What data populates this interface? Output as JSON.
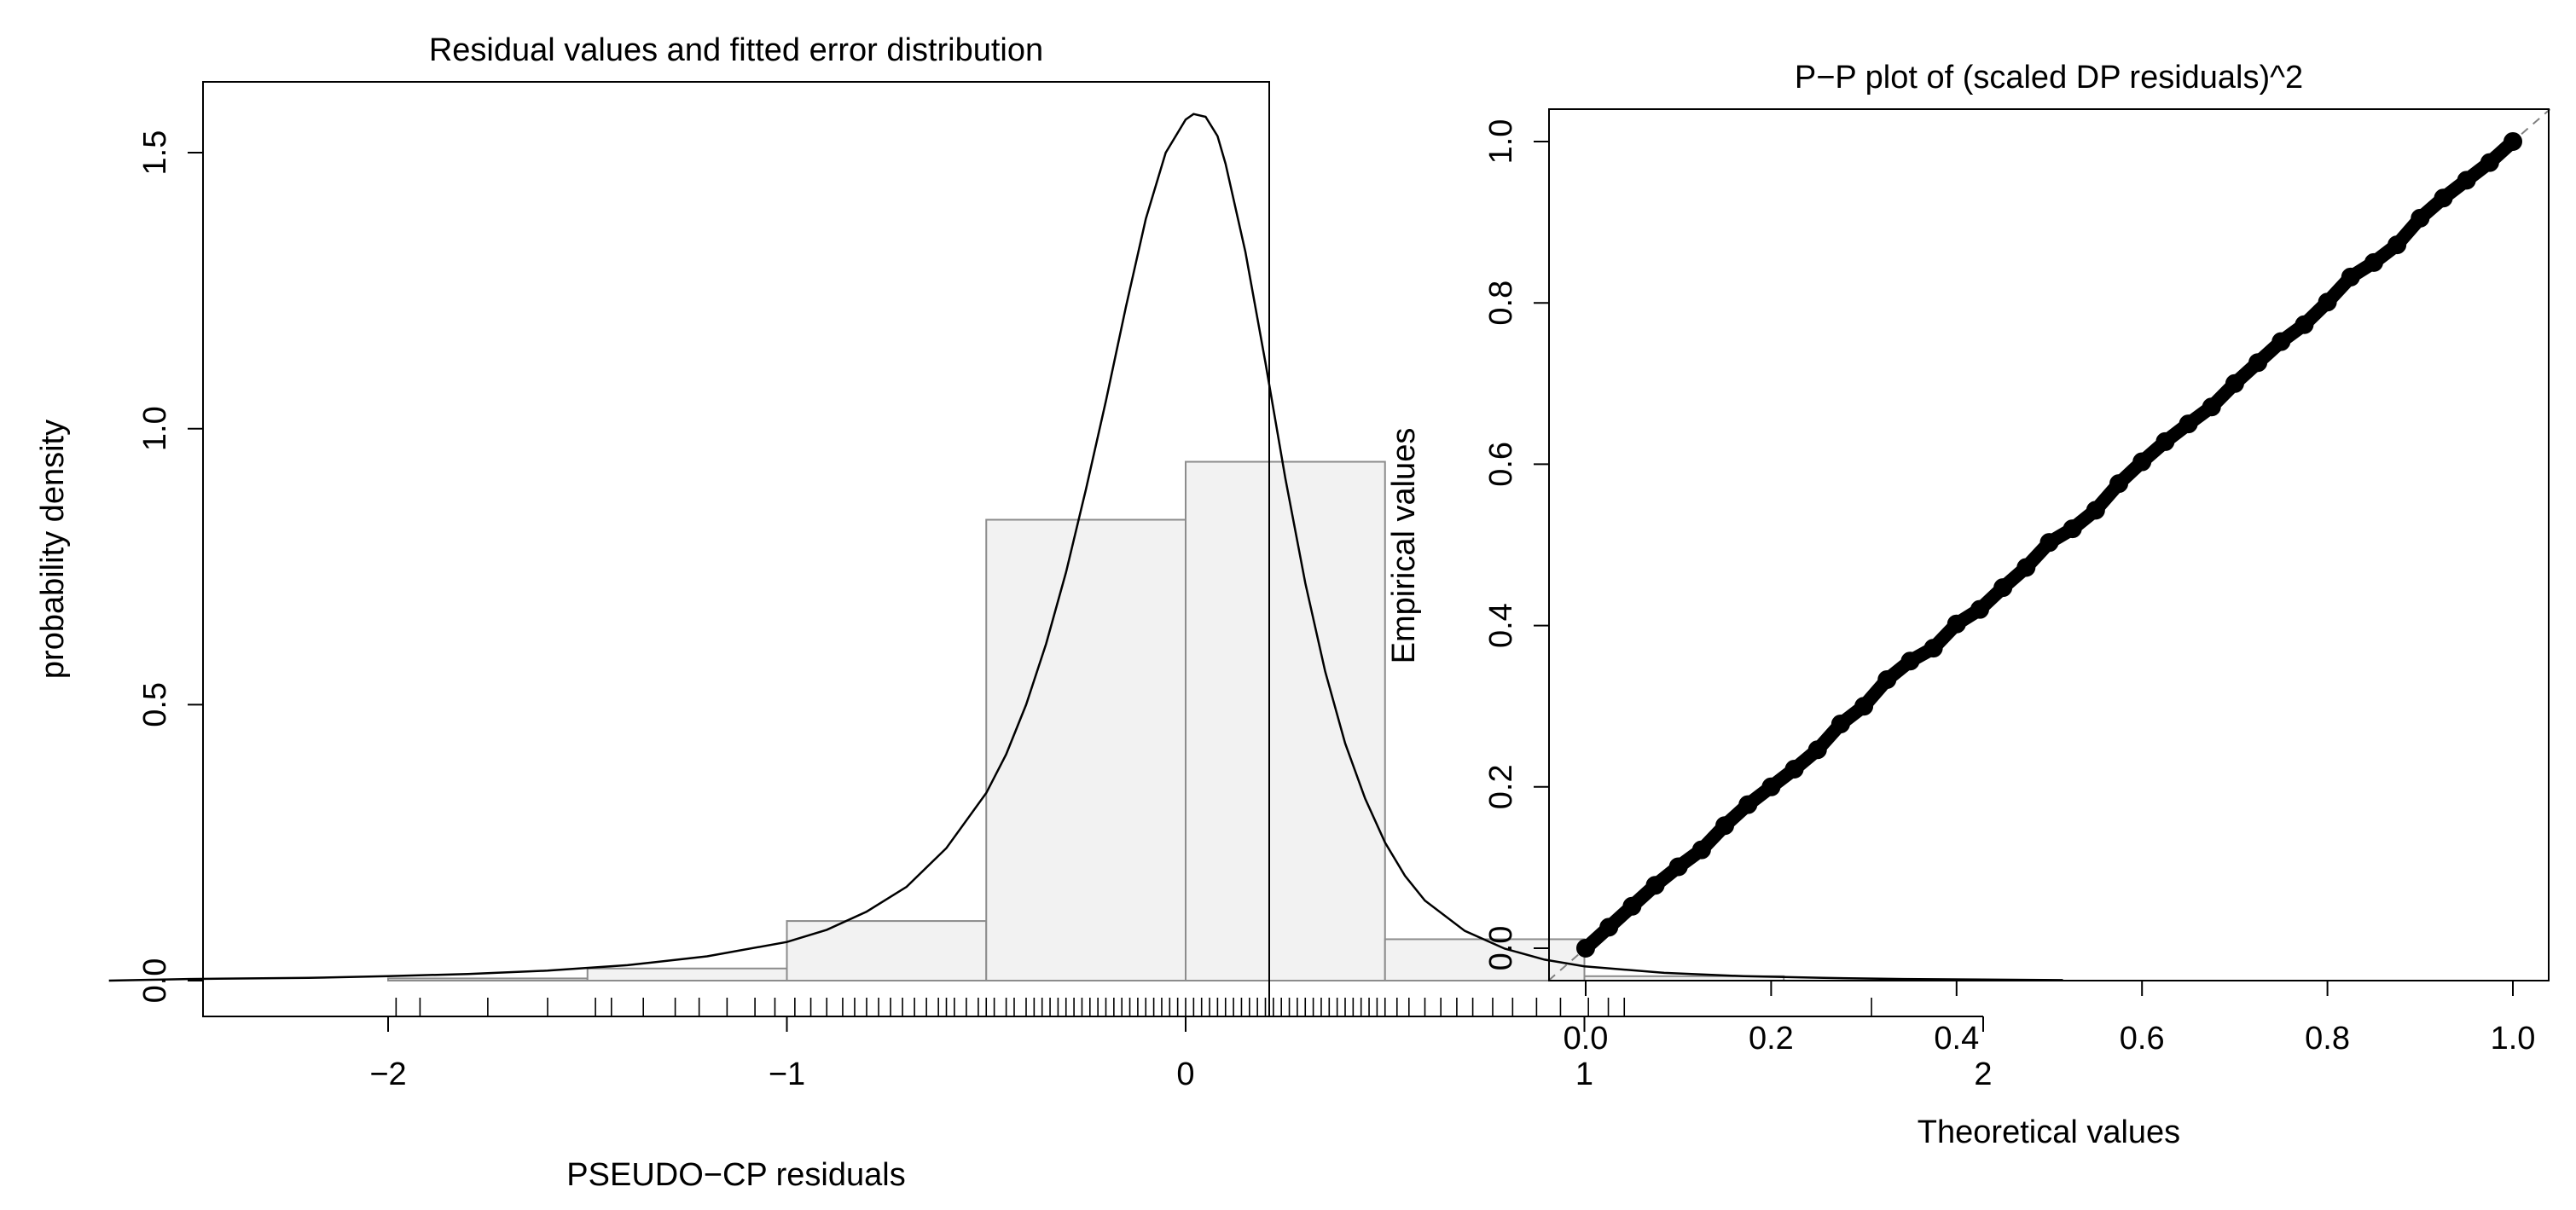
{
  "chart_data": [
    {
      "type": "bar",
      "title": "Residual values and fitted error distribution",
      "xlabel": "PSEUDO−CP residuals",
      "ylabel": "probability density",
      "xlim": [
        -2.7,
        2.2
      ],
      "ylim": [
        0,
        1.65
      ],
      "x_ticks": [
        -2,
        -1,
        0,
        1,
        2
      ],
      "x_tick_labels": [
        "−2",
        "−1",
        "0",
        "1",
        "2"
      ],
      "y_ticks": [
        0,
        0.5,
        1,
        1.5
      ],
      "y_tick_labels": [
        "0.0",
        "0.5",
        "1.0",
        "1.5"
      ],
      "grid": false,
      "histogram": {
        "bin_edges": [
          -2,
          -1.5,
          -1,
          -0.5,
          0,
          0.5,
          1,
          1.5
        ],
        "values": [
          0.004,
          0.022,
          0.108,
          0.835,
          0.94,
          0.075,
          0.008
        ],
        "fill": "#f2f2f2",
        "stroke": "#8c8c8c"
      },
      "density_curve": {
        "color": "#000000",
        "x": [
          -2.7,
          -2.5,
          -2.2,
          -2.0,
          -1.8,
          -1.6,
          -1.4,
          -1.2,
          -1.0,
          -0.9,
          -0.8,
          -0.7,
          -0.6,
          -0.5,
          -0.45,
          -0.4,
          -0.35,
          -0.3,
          -0.25,
          -0.2,
          -0.15,
          -0.1,
          -0.05,
          0.0,
          0.02,
          0.05,
          0.08,
          0.1,
          0.15,
          0.2,
          0.25,
          0.3,
          0.35,
          0.4,
          0.45,
          0.5,
          0.55,
          0.6,
          0.7,
          0.8,
          0.9,
          1.0,
          1.2,
          1.4,
          1.6,
          1.8,
          2.0,
          2.2
        ],
        "y": [
          0.0,
          0.003,
          0.005,
          0.008,
          0.012,
          0.018,
          0.028,
          0.044,
          0.07,
          0.092,
          0.125,
          0.17,
          0.24,
          0.34,
          0.41,
          0.5,
          0.61,
          0.74,
          0.89,
          1.05,
          1.22,
          1.38,
          1.5,
          1.56,
          1.57,
          1.565,
          1.53,
          1.48,
          1.32,
          1.12,
          0.91,
          0.72,
          0.56,
          0.43,
          0.33,
          0.25,
          0.19,
          0.145,
          0.09,
          0.058,
          0.038,
          0.026,
          0.014,
          0.008,
          0.005,
          0.003,
          0.002,
          0.001
        ]
      },
      "rug": [
        -1.98,
        -1.92,
        -1.75,
        -1.6,
        -1.48,
        -1.44,
        -1.36,
        -1.28,
        -1.22,
        -1.15,
        -1.08,
        -1.03,
        -0.98,
        -0.94,
        -0.9,
        -0.86,
        -0.83,
        -0.8,
        -0.77,
        -0.74,
        -0.71,
        -0.68,
        -0.65,
        -0.62,
        -0.6,
        -0.58,
        -0.55,
        -0.52,
        -0.5,
        -0.48,
        -0.45,
        -0.43,
        -0.4,
        -0.38,
        -0.36,
        -0.34,
        -0.32,
        -0.3,
        -0.28,
        -0.26,
        -0.24,
        -0.22,
        -0.2,
        -0.18,
        -0.16,
        -0.14,
        -0.12,
        -0.1,
        -0.08,
        -0.06,
        -0.04,
        -0.02,
        0.0,
        0.02,
        0.04,
        0.06,
        0.08,
        0.1,
        0.12,
        0.14,
        0.16,
        0.18,
        0.2,
        0.22,
        0.24,
        0.26,
        0.28,
        0.3,
        0.32,
        0.34,
        0.36,
        0.38,
        0.4,
        0.42,
        0.44,
        0.46,
        0.48,
        0.5,
        0.53,
        0.56,
        0.6,
        0.64,
        0.68,
        0.72,
        0.77,
        0.82,
        0.88,
        0.94,
        1.01,
        1.06,
        1.1,
        1.72
      ]
    },
    {
      "type": "scatter",
      "title": "P−P plot of (scaled DP residuals)^2",
      "xlabel": "Theoretical values",
      "ylabel": "Empirical values",
      "xlim": [
        -0.04,
        1.04
      ],
      "ylim": [
        -0.04,
        1.04
      ],
      "x_ticks": [
        0,
        0.2,
        0.4,
        0.6,
        0.8,
        1
      ],
      "x_tick_labels": [
        "0.0",
        "0.2",
        "0.4",
        "0.6",
        "0.8",
        "1.0"
      ],
      "y_ticks": [
        0,
        0.2,
        0.4,
        0.6,
        0.8,
        1
      ],
      "y_tick_labels": [
        "0.0",
        "0.2",
        "0.4",
        "0.6",
        "0.8",
        "1.0"
      ],
      "grid": false,
      "reference_line": {
        "slope": 1,
        "intercept": 0,
        "style": "dashed",
        "color": "#808080"
      },
      "point_color": "#000000",
      "points": {
        "x": [
          0,
          0.025,
          0.05,
          0.075,
          0.1,
          0.125,
          0.15,
          0.175,
          0.2,
          0.225,
          0.25,
          0.275,
          0.3,
          0.325,
          0.35,
          0.375,
          0.4,
          0.425,
          0.45,
          0.475,
          0.5,
          0.525,
          0.55,
          0.575,
          0.6,
          0.625,
          0.65,
          0.675,
          0.7,
          0.725,
          0.75,
          0.775,
          0.8,
          0.825,
          0.85,
          0.875,
          0.9,
          0.925,
          0.95,
          0.975,
          1.0
        ],
        "y": [
          0,
          0.026,
          0.052,
          0.078,
          0.101,
          0.122,
          0.152,
          0.178,
          0.2,
          0.222,
          0.246,
          0.278,
          0.3,
          0.333,
          0.356,
          0.372,
          0.402,
          0.42,
          0.447,
          0.472,
          0.503,
          0.52,
          0.543,
          0.576,
          0.603,
          0.628,
          0.65,
          0.671,
          0.7,
          0.726,
          0.752,
          0.773,
          0.801,
          0.832,
          0.85,
          0.872,
          0.905,
          0.93,
          0.952,
          0.974,
          1.0
        ]
      }
    }
  ]
}
